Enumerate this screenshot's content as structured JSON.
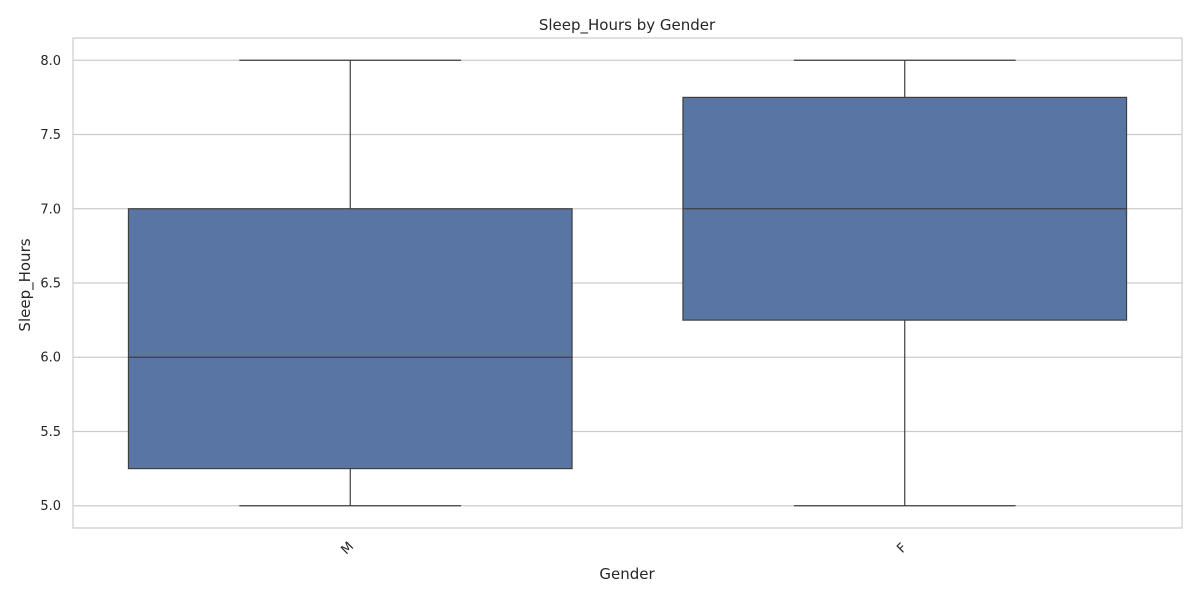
{
  "chart_data": {
    "type": "box",
    "title": "Sleep_Hours by Gender",
    "xlabel": "Gender",
    "ylabel": "Sleep_Hours",
    "categories": [
      "M",
      "F"
    ],
    "yticks": [
      "5.0",
      "5.5",
      "6.0",
      "6.5",
      "7.0",
      "7.5",
      "8.0"
    ],
    "ylim": [
      4.85,
      8.15
    ],
    "boxes": [
      {
        "category": "M",
        "whisker_low": 5.0,
        "q1": 5.25,
        "median": 6.0,
        "q3": 7.0,
        "whisker_high": 8.0
      },
      {
        "category": "F",
        "whisker_low": 5.0,
        "q1": 6.25,
        "median": 7.0,
        "q3": 7.75,
        "whisker_high": 8.0
      }
    ],
    "grid": true,
    "colors": {
      "box_fill": "#5975a4",
      "line": "#3f3f3f",
      "grid": "#cccccc",
      "frame": "#cccccc"
    }
  }
}
